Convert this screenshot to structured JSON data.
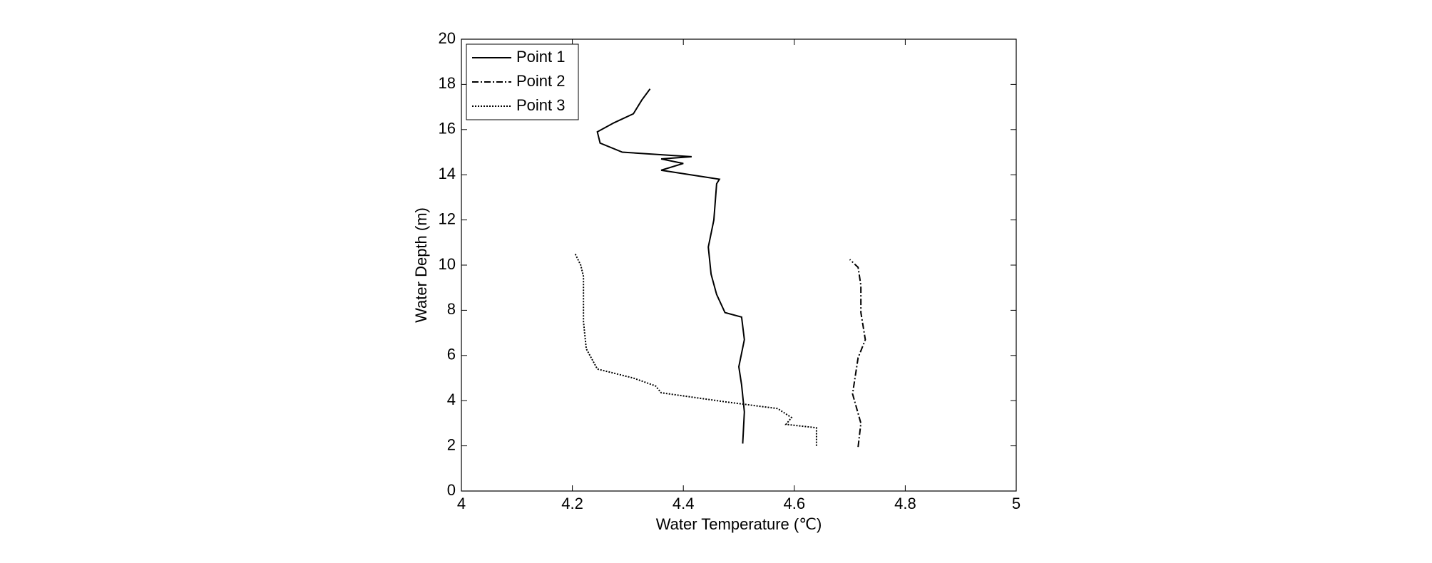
{
  "chart_data": {
    "type": "line",
    "x_label": "Water Temperature (℃)",
    "y_label": "Water Depth (m)",
    "xlim": [
      4,
      5
    ],
    "xticks": [
      4,
      4.2,
      4.4,
      4.6,
      4.8,
      5
    ],
    "ylim": [
      0,
      20
    ],
    "yticks": [
      0,
      2,
      4,
      6,
      8,
      10,
      12,
      14,
      16,
      18,
      20
    ],
    "legend": "upper-left",
    "series": [
      {
        "name": "Point 1",
        "color": "#000000",
        "linestyle": "solid",
        "x": [
          4.507,
          4.51,
          4.505,
          4.5,
          4.51,
          4.505,
          4.475,
          4.46,
          4.45,
          4.445,
          4.455,
          4.46,
          4.465,
          4.36,
          4.4,
          4.36,
          4.415,
          4.29,
          4.25,
          4.245,
          4.275,
          4.31,
          4.325,
          4.34
        ],
        "y": [
          2.1,
          3.5,
          4.7,
          5.5,
          6.7,
          7.7,
          7.9,
          8.7,
          9.6,
          10.8,
          12,
          13.6,
          13.8,
          14.2,
          14.5,
          14.7,
          14.8,
          15.0,
          15.4,
          15.9,
          16.3,
          16.7,
          17.3,
          17.8
        ]
      },
      {
        "name": "Point 2",
        "color": "#000000",
        "linestyle": "dashdot",
        "x": [
          4.715,
          4.72,
          4.705,
          4.715,
          4.728,
          4.72,
          4.72,
          4.715,
          4.7
        ],
        "y": [
          1.95,
          3.0,
          4.3,
          5.9,
          6.7,
          7.9,
          9.1,
          9.9,
          10.25
        ]
      },
      {
        "name": "Point 3",
        "color": "#000000",
        "linestyle": "dotted",
        "x": [
          4.64,
          4.64,
          4.585,
          4.595,
          4.57,
          4.475,
          4.36,
          4.35,
          4.31,
          4.245,
          4.225,
          4.22,
          4.22,
          4.215,
          4.205
        ],
        "y": [
          2.0,
          2.8,
          2.95,
          3.25,
          3.65,
          3.95,
          4.35,
          4.65,
          5.0,
          5.4,
          6.3,
          7.5,
          9.5,
          10.0,
          10.5
        ]
      }
    ]
  }
}
